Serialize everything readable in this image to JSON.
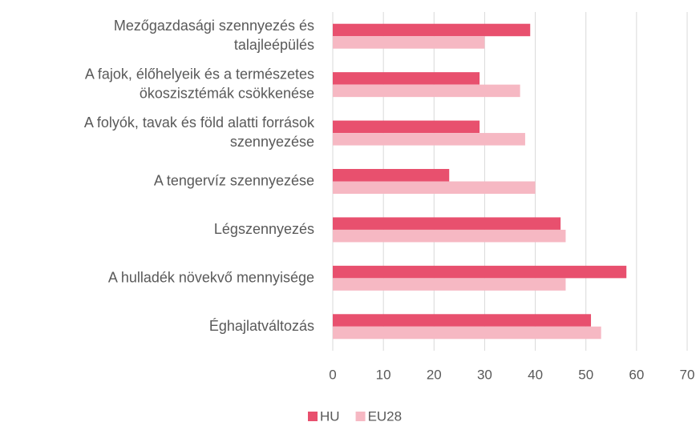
{
  "chart_data": {
    "type": "bar",
    "orientation": "horizontal",
    "categories": [
      "Mezőgazdasági szennyezés és\ntalajleépülés",
      "A fajok, élőhelyeik és a természetes\nökoszisztémák csökkenése",
      "A folyók, tavak és föld alatti források\nszennyezése",
      "A tengervíz szennyezése",
      "Légszennyezés",
      "A hulladék növekvő mennyisége",
      "Éghajlatváltozás"
    ],
    "series": [
      {
        "name": "HU",
        "color": "#e8506e",
        "values": [
          39,
          29,
          29,
          23,
          45,
          58,
          51
        ]
      },
      {
        "name": "EU28",
        "color": "#f6b8c3",
        "values": [
          30,
          37,
          38,
          40,
          46,
          46,
          53
        ]
      }
    ],
    "xlim": [
      0,
      70
    ],
    "xticks": [
      0,
      10,
      20,
      30,
      40,
      50,
      60,
      70
    ],
    "grid": true,
    "legend": "bottom"
  }
}
